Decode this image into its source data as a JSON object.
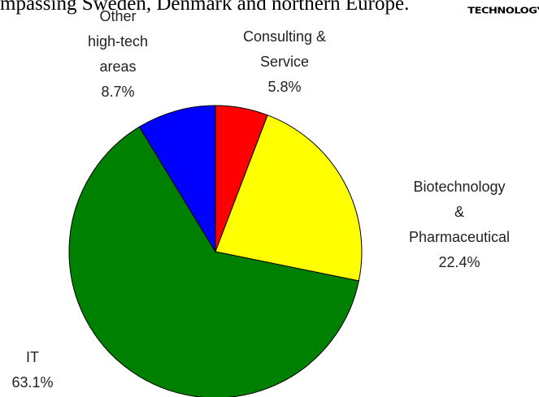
{
  "caption": "mpassing Sweden, Denmark and northern Europe.",
  "logo": "TECHNOLOGY",
  "chart_data": {
    "type": "pie",
    "categories": [
      "Consulting &\nService",
      "Biotechnology &\nPharmaceutical",
      "IT",
      "Other\nhigh-tech\nareas"
    ],
    "values": [
      5.8,
      22.4,
      63.1,
      8.7
    ],
    "value_labels": [
      "5.8%",
      "22.4%",
      "63.1%",
      "8.7%"
    ],
    "colors": [
      "#ff0000",
      "#ffff00",
      "#008000",
      "#0000ff"
    ]
  }
}
